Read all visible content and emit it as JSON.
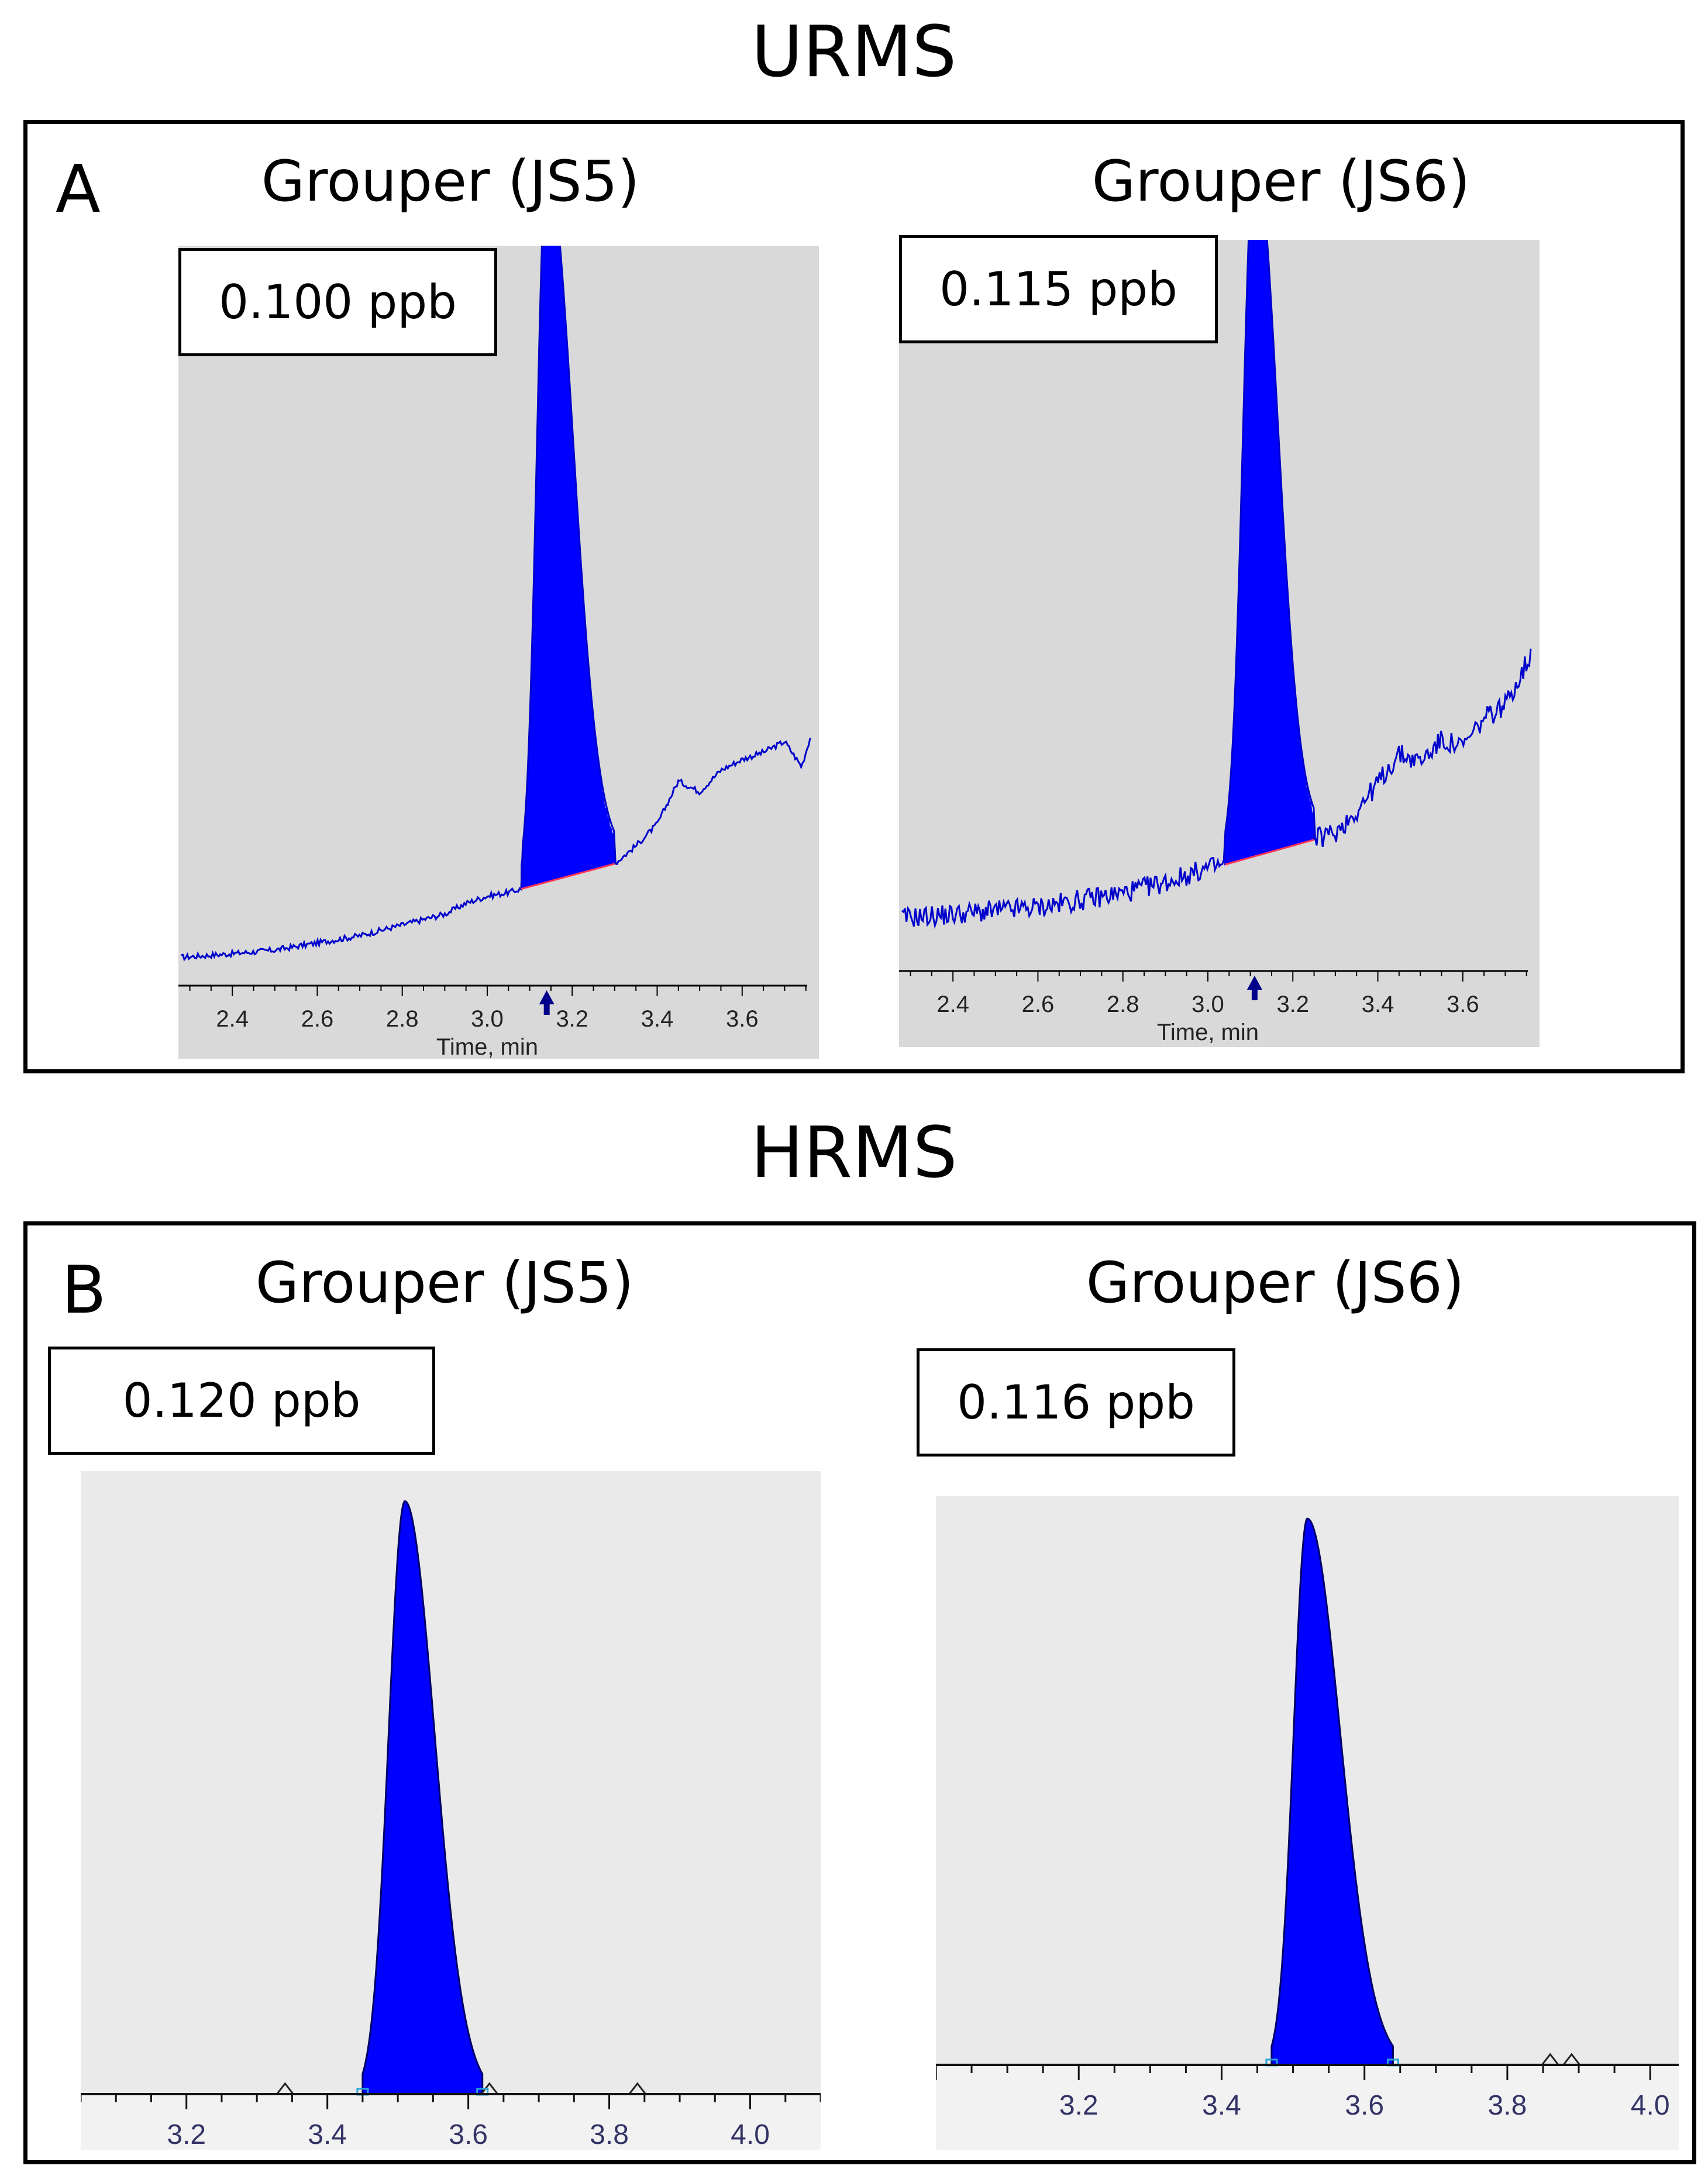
{
  "sections": {
    "top_title": "URMS",
    "bottom_title": "HRMS"
  },
  "panels": {
    "a": {
      "letter": "A",
      "left": {
        "title": "Grouper (JS5)",
        "conc": "0.100 ppb"
      },
      "right": {
        "title": "Grouper (JS6)",
        "conc": "0.115 ppb"
      }
    },
    "b": {
      "letter": "B",
      "left": {
        "title": "Grouper (JS5)",
        "conc": "0.120 ppb"
      },
      "right": {
        "title": "Grouper (JS6)",
        "conc": "0.116 ppb"
      }
    }
  },
  "colors": {
    "peak_fill": "#0000ff",
    "trace": "#0000cc",
    "plot_bg_urms": "#d9d9d9",
    "plot_bg_hrms": "#eaeaea",
    "baseline": "#ff3355",
    "tick_text": "#333366"
  },
  "chart_data": [
    {
      "type": "line",
      "panel": "A-left",
      "title": "Grouper (JS5)",
      "xlabel": "Time, min",
      "ylabel": "",
      "xlim": [
        2.28,
        3.76
      ],
      "ylim": [
        0,
        1.0
      ],
      "x_ticks": [
        "2.4",
        "2.6",
        "2.8",
        "3.0",
        "3.2",
        "3.4",
        "3.6"
      ],
      "peak_apex_label": "3.14",
      "peak": {
        "rt": 3.14,
        "height": 0.99,
        "start": 3.08,
        "end": 3.3
      },
      "series": [
        {
          "x": [
            2.28,
            2.4,
            2.5,
            2.6,
            2.7,
            2.8,
            2.9,
            2.95,
            3.0,
            3.05,
            3.08,
            3.3,
            3.35,
            3.4,
            3.45,
            3.5,
            3.55,
            3.6,
            3.65,
            3.7,
            3.74,
            3.76
          ],
          "y": [
            0.015,
            0.02,
            0.025,
            0.035,
            0.045,
            0.06,
            0.075,
            0.09,
            0.1,
            0.105,
            0.11,
            0.145,
            0.17,
            0.2,
            0.26,
            0.245,
            0.275,
            0.29,
            0.3,
            0.315,
            0.28,
            0.32
          ]
        }
      ]
    },
    {
      "type": "line",
      "panel": "A-right",
      "title": "Grouper (JS6)",
      "xlabel": "Time, min",
      "ylabel": "",
      "xlim": [
        2.28,
        3.76
      ],
      "ylim": [
        0,
        1.0
      ],
      "x_ticks": [
        "2.4",
        "2.6",
        "2.8",
        "3.0",
        "3.2",
        "3.4",
        "3.6"
      ],
      "peak_apex_label": "3.11",
      "peak": {
        "rt": 3.11,
        "height": 0.99,
        "start": 3.04,
        "end": 3.25
      },
      "series": [
        {
          "x": [
            2.28,
            2.4,
            2.5,
            2.6,
            2.7,
            2.8,
            2.9,
            3.0,
            3.04,
            3.25,
            3.3,
            3.35,
            3.4,
            3.45,
            3.5,
            3.55,
            3.6,
            3.65,
            3.7,
            3.76
          ],
          "y": [
            0.05,
            0.055,
            0.06,
            0.065,
            0.075,
            0.085,
            0.1,
            0.12,
            0.125,
            0.16,
            0.17,
            0.2,
            0.24,
            0.28,
            0.27,
            0.3,
            0.29,
            0.33,
            0.35,
            0.42
          ]
        }
      ]
    },
    {
      "type": "area",
      "panel": "B-left",
      "title": "Grouper (JS5)",
      "xlabel": "",
      "ylabel": "",
      "xlim": [
        3.05,
        4.1
      ],
      "ylim": [
        0,
        1.0
      ],
      "x_ticks": [
        "3.2",
        "3.4",
        "3.6",
        "3.8",
        "4.0"
      ],
      "peak": {
        "rt": 3.51,
        "height": 0.97,
        "start": 3.45,
        "end": 3.62
      },
      "minor_peaks": [
        3.34,
        3.63,
        3.84
      ]
    },
    {
      "type": "area",
      "panel": "B-right",
      "title": "Grouper (JS6)",
      "xlabel": "",
      "ylabel": "",
      "xlim": [
        3.0,
        4.04
      ],
      "ylim": [
        0,
        1.0
      ],
      "x_ticks": [
        "3.2",
        "3.4",
        "3.6",
        "3.8",
        "4.0"
      ],
      "peak": {
        "rt": 3.52,
        "height": 0.98,
        "start": 3.47,
        "end": 3.64
      },
      "minor_peaks": [
        3.86,
        3.89
      ]
    }
  ]
}
